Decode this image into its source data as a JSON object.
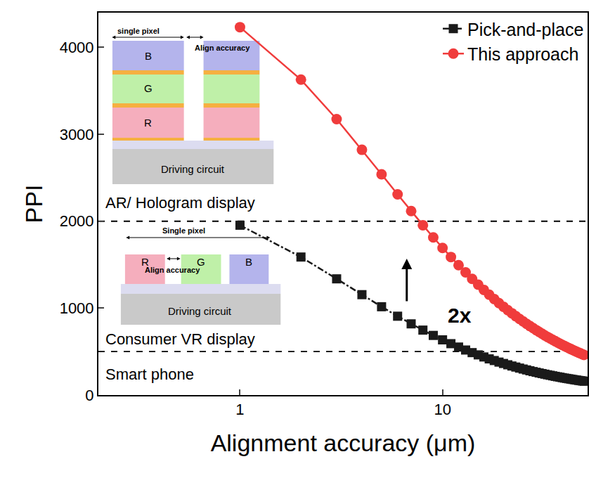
{
  "chart_data": {
    "type": "line",
    "x_label": "Alignment accuracy (μm)",
    "y_label": "PPI",
    "log": "x",
    "xlim": [
      0.2,
      52
    ],
    "xticks": [
      1,
      10
    ],
    "ylim": [
      0,
      4400
    ],
    "yticks": [
      0,
      1000,
      2000,
      3000,
      4000
    ],
    "legend": "upper right",
    "x": [
      1,
      2,
      3,
      4,
      5,
      6,
      7,
      8,
      9,
      10,
      11,
      12,
      13,
      14,
      15,
      16,
      17,
      18,
      19,
      20,
      21,
      22,
      23,
      24,
      25,
      26,
      27,
      28,
      29,
      30,
      31,
      32,
      33,
      34,
      35,
      36,
      37,
      38,
      39,
      40,
      41,
      42,
      43,
      44,
      45,
      46,
      47,
      48,
      49,
      50
    ],
    "series": [
      {
        "name": "Pick-and-place",
        "color": "#1a1a1a",
        "marker": "square",
        "line_style": "dashdot",
        "values": [
          1954,
          1588,
          1337,
          1155,
          1016,
          907,
          819,
          747,
          686,
          635,
          591,
          552,
          518,
          488,
          462,
          438,
          416,
          397,
          379,
          363,
          348,
          334,
          322,
          310,
          299,
          289,
          279,
          270,
          262,
          254,
          247,
          240,
          233,
          227,
          221,
          215,
          210,
          205,
          200,
          195,
          191,
          187,
          183,
          179,
          175,
          172,
          168,
          165,
          162,
          159
        ]
      },
      {
        "name": "This approach",
        "color": "#f03c3c",
        "marker": "circle",
        "line_style": "solid",
        "values": [
          4233,
          3629,
          3175,
          2822,
          2540,
          2309,
          2117,
          1954,
          1814,
          1693,
          1588,
          1494,
          1411,
          1337,
          1270,
          1210,
          1155,
          1104,
          1058,
          1016,
          977,
          941,
          907,
          876,
          847,
          819,
          794,
          770,
          747,
          726,
          706,
          686,
          668,
          651,
          635,
          620,
          605,
          591,
          577,
          564,
          552,
          540,
          529,
          518,
          508,
          498,
          488,
          479,
          470,
          462
        ]
      }
    ],
    "reference_lines": [
      {
        "y": 2000,
        "line_style": "dashed"
      },
      {
        "y": 500,
        "line_style": "dashed"
      }
    ],
    "annotations": [
      "AR/ Hologram display",
      "Consumer VR display",
      "Smart phone",
      "2x"
    ],
    "insets": [
      {
        "pixel_label": "single pixel",
        "align_label": "Align accuracy",
        "layers": [
          "B",
          "G",
          "R"
        ],
        "base_label": "Driving circuit"
      },
      {
        "pixel_label": "Single pixel",
        "align_label": "Align accuracy",
        "subpixels": [
          "R",
          "G",
          "B"
        ],
        "base_label": "Driving circuit"
      }
    ]
  }
}
